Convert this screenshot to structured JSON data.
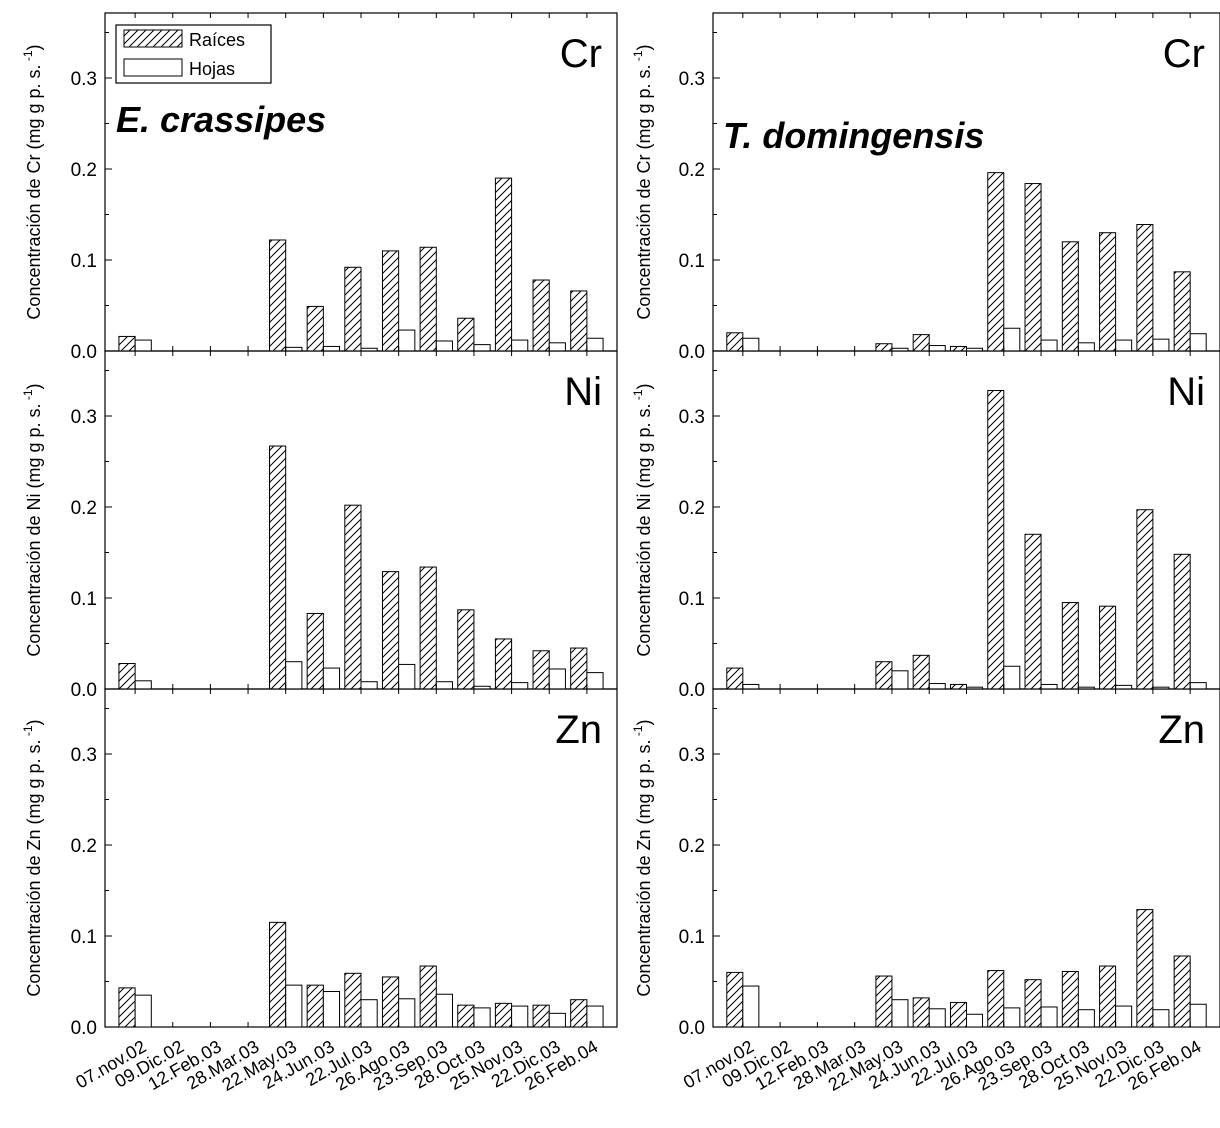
{
  "categories": [
    "07.nov.02",
    "09.Dic.02",
    "12.Feb.03",
    "28.Mar.03",
    "22.May.03",
    "24.Jun.03",
    "22.Jul.03",
    "26.Ago.03",
    "23.Sep.03",
    "28.Oct.03",
    "25.Nov.03",
    "22.Dic.03",
    "26.Feb.04"
  ],
  "legend": {
    "raices": "Raíces",
    "hojas": "Hojas"
  },
  "chart_data": [
    {
      "type": "bar",
      "species": "E. crassipes",
      "categories": [
        "07.nov.02",
        "09.Dic.02",
        "12.Feb.03",
        "28.Mar.03",
        "22.May.03",
        "24.Jun.03",
        "22.Jul.03",
        "26.Ago.03",
        "23.Sep.03",
        "28.Oct.03",
        "25.Nov.03",
        "22.Dic.03",
        "26.Feb.04"
      ],
      "legend_position": "top-left",
      "panels": [
        {
          "metal": "Cr",
          "ylabel": "Concentración de Cr (mg g p. s.",
          "ylabel_sup": "-1",
          "ylim": [
            0,
            0.37
          ],
          "yticks": [
            "0.0",
            "0.1",
            "0.2",
            "0.3"
          ],
          "series": [
            {
              "name": "Raíces",
              "pattern": "hatched",
              "values": [
                0.016,
                0,
                0,
                0,
                0.122,
                0.049,
                0.092,
                0.11,
                0.114,
                0.036,
                0.19,
                0.078,
                0.066
              ]
            },
            {
              "name": "Hojas",
              "pattern": "open",
              "values": [
                0.012,
                0,
                0,
                0,
                0.004,
                0.005,
                0.003,
                0.023,
                0.011,
                0.007,
                0.012,
                0.009,
                0.014
              ]
            }
          ]
        },
        {
          "metal": "Ni",
          "ylabel": "Concentración de Ni (mg g p. s.",
          "ylabel_sup": "-1",
          "ylim": [
            0,
            0.37
          ],
          "yticks": [
            "0.0",
            "0.1",
            "0.2",
            "0.3"
          ],
          "series": [
            {
              "name": "Raíces",
              "pattern": "hatched",
              "values": [
                0.028,
                0,
                0,
                0,
                0.267,
                0.083,
                0.202,
                0.129,
                0.134,
                0.087,
                0.055,
                0.042,
                0.045
              ]
            },
            {
              "name": "Hojas",
              "pattern": "open",
              "values": [
                0.009,
                0,
                0,
                0,
                0.03,
                0.023,
                0.008,
                0.027,
                0.008,
                0.003,
                0.007,
                0.022,
                0.018
              ]
            }
          ]
        },
        {
          "metal": "Zn",
          "ylabel": "Concentración de Zn (mg g p. s.",
          "ylabel_sup": "-1",
          "ylim": [
            0,
            0.37
          ],
          "yticks": [
            "0.0",
            "0.1",
            "0.2",
            "0.3"
          ],
          "series": [
            {
              "name": "Raíces",
              "pattern": "hatched",
              "values": [
                0.043,
                0,
                0,
                0,
                0.115,
                0.046,
                0.059,
                0.055,
                0.067,
                0.024,
                0.026,
                0.024,
                0.03
              ]
            },
            {
              "name": "Hojas",
              "pattern": "open",
              "values": [
                0.035,
                0,
                0,
                0,
                0.046,
                0.039,
                0.03,
                0.031,
                0.036,
                0.021,
                0.023,
                0.015,
                0.023
              ]
            }
          ]
        }
      ]
    },
    {
      "type": "bar",
      "species": "T. domingensis",
      "categories": [
        "07.nov.02",
        "09.Dic.02",
        "12.Feb.03",
        "28.Mar.03",
        "22.May.03",
        "24.Jun.03",
        "22.Jul.03",
        "26.Ago.03",
        "23.Sep.03",
        "28.Oct.03",
        "25.Nov.03",
        "22.Dic.03",
        "26.Feb.04"
      ],
      "panels": [
        {
          "metal": "Cr",
          "ylabel": "Concentración de Cr (mg g p. s.",
          "ylabel_sup": "-1",
          "ylim": [
            0,
            0.37
          ],
          "yticks": [
            "0.0",
            "0.1",
            "0.2",
            "0.3"
          ],
          "series": [
            {
              "name": "Raíces",
              "pattern": "hatched",
              "values": [
                0.02,
                0,
                0,
                0,
                0.008,
                0.018,
                0.005,
                0.196,
                0.184,
                0.12,
                0.13,
                0.139,
                0.087
              ]
            },
            {
              "name": "Hojas",
              "pattern": "open",
              "values": [
                0.014,
                0,
                0,
                0,
                0.003,
                0.006,
                0.003,
                0.025,
                0.012,
                0.009,
                0.012,
                0.013,
                0.019
              ]
            }
          ]
        },
        {
          "metal": "Ni",
          "ylabel": "Concentración de Ni (mg g p. s.",
          "ylabel_sup": "-1",
          "ylim": [
            0,
            0.37
          ],
          "yticks": [
            "0.0",
            "0.1",
            "0.2",
            "0.3"
          ],
          "series": [
            {
              "name": "Raíces",
              "pattern": "hatched",
              "values": [
                0.023,
                0,
                0,
                0,
                0.03,
                0.037,
                0.005,
                0.328,
                0.17,
                0.095,
                0.091,
                0.197,
                0.148
              ]
            },
            {
              "name": "Hojas",
              "pattern": "open",
              "values": [
                0.005,
                0,
                0,
                0,
                0.02,
                0.006,
                0.002,
                0.025,
                0.005,
                0.002,
                0.004,
                0.002,
                0.007
              ]
            }
          ]
        },
        {
          "metal": "Zn",
          "ylabel": "Concentración de Zn (mg g p. s.",
          "ylabel_sup": "-1",
          "ylim": [
            0,
            0.37
          ],
          "yticks": [
            "0.0",
            "0.1",
            "0.2",
            "0.3"
          ],
          "series": [
            {
              "name": "Raíces",
              "pattern": "hatched",
              "values": [
                0.06,
                0,
                0,
                0,
                0.056,
                0.032,
                0.027,
                0.062,
                0.052,
                0.061,
                0.067,
                0.129,
                0.078
              ]
            },
            {
              "name": "Hojas",
              "pattern": "open",
              "values": [
                0.045,
                0,
                0,
                0,
                0.03,
                0.02,
                0.014,
                0.021,
                0.022,
                0.019,
                0.023,
                0.019,
                0.025
              ]
            }
          ]
        }
      ]
    }
  ]
}
